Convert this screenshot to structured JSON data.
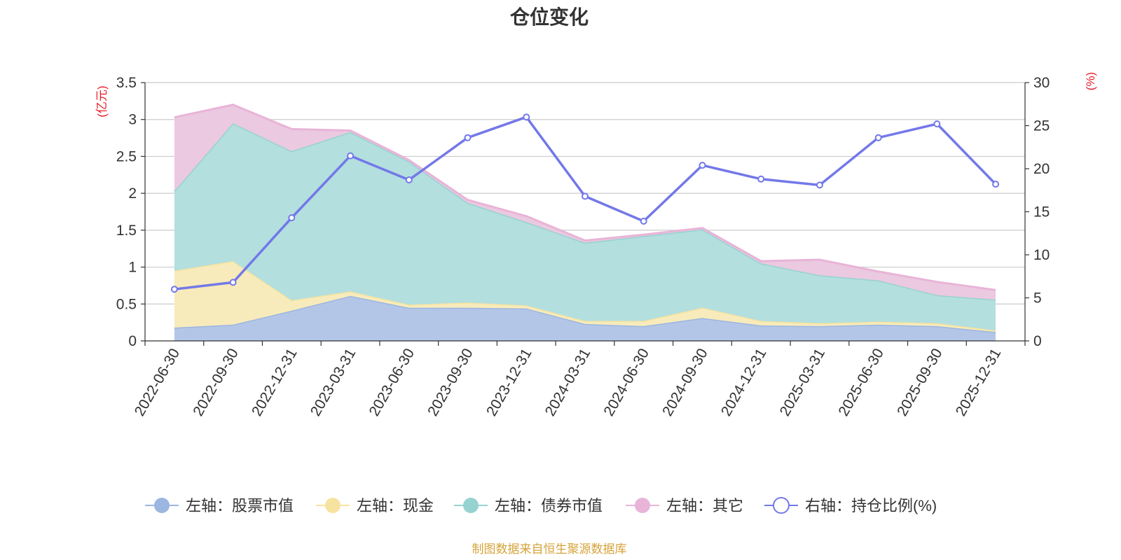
{
  "chart_data": {
    "type": "area",
    "title": "仓位变化",
    "source": "制图数据来自恒生聚源数据库",
    "left_axis": {
      "unit": "(亿元)",
      "ylim": [
        0,
        3.5
      ],
      "ticks": [
        0,
        0.5,
        1,
        1.5,
        2,
        2.5,
        3,
        3.5
      ],
      "tick_labels": [
        "0",
        "0.5",
        "1",
        "1.5",
        "2",
        "2.5",
        "3",
        "3.5"
      ]
    },
    "right_axis": {
      "unit": "(%)",
      "ylim": [
        0,
        30
      ],
      "ticks": [
        0,
        5,
        10,
        15,
        20,
        25,
        30
      ],
      "tick_labels": [
        "0",
        "5",
        "10",
        "15",
        "20",
        "25",
        "30"
      ]
    },
    "categories": [
      "2022-06-30",
      "2022-09-30",
      "2022-12-31",
      "2023-03-31",
      "2023-06-30",
      "2023-09-30",
      "2023-12-31",
      "2024-03-31",
      "2024-06-30",
      "2024-09-30",
      "2024-12-31",
      "2025-03-31",
      "2025-06-30",
      "2025-09-30",
      "2025-12-31"
    ],
    "series": [
      {
        "name": "左轴：股票市值",
        "axis": "left",
        "kind": "stacked-area",
        "color": "#9bb6e0",
        "fill": "#b4c6e8",
        "values": [
          0.18,
          0.22,
          0.41,
          0.61,
          0.45,
          0.45,
          0.44,
          0.23,
          0.2,
          0.31,
          0.21,
          0.2,
          0.22,
          0.2,
          0.12
        ]
      },
      {
        "name": "左轴：现金",
        "axis": "left",
        "kind": "stacked-area",
        "color": "#f7e3a0",
        "fill": "#f8ebbb",
        "values": [
          0.77,
          0.86,
          0.14,
          0.06,
          0.04,
          0.07,
          0.04,
          0.04,
          0.07,
          0.14,
          0.06,
          0.04,
          0.04,
          0.04,
          0.02
        ]
      },
      {
        "name": "左轴：债券市值",
        "axis": "left",
        "kind": "stacked-area",
        "color": "#96d3d0",
        "fill": "#b3dfdf",
        "values": [
          1.08,
          1.87,
          2.02,
          2.16,
          1.94,
          1.35,
          1.13,
          1.06,
          1.15,
          1.06,
          0.78,
          0.65,
          0.56,
          0.38,
          0.42
        ]
      },
      {
        "name": "左轴：其它",
        "axis": "left",
        "kind": "stacked-area",
        "color": "#e8b4d8",
        "fill": "#ebc9e0",
        "values": [
          1.0,
          0.25,
          0.3,
          0.02,
          0.02,
          0.04,
          0.08,
          0.03,
          0.02,
          0.02,
          0.03,
          0.21,
          0.12,
          0.18,
          0.13
        ]
      },
      {
        "name": "右轴：持仓比例(%)",
        "axis": "right",
        "kind": "line",
        "color": "#7378e8",
        "values": [
          6.0,
          6.8,
          14.3,
          21.5,
          18.7,
          23.6,
          26.0,
          16.8,
          13.9,
          20.4,
          18.8,
          18.1,
          23.6,
          25.2,
          18.2
        ]
      }
    ]
  },
  "colors": {
    "title": "#333333",
    "axis_unit": "#e8202a",
    "source": "#d6a33a",
    "grid": "#cccccc",
    "axis_line": "#333333"
  }
}
